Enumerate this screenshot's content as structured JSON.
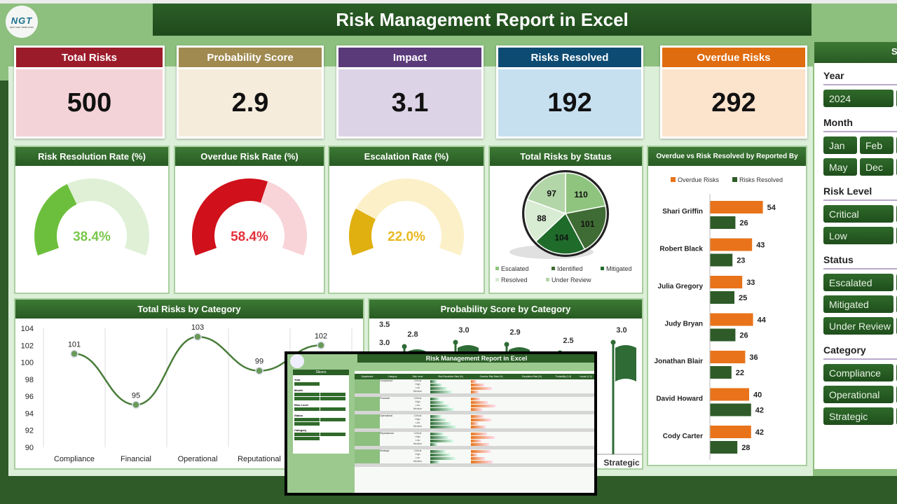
{
  "header": {
    "title": "Risk Management Report in Excel",
    "logo_text": "NGT",
    "logo_sub": "NEXT GEN TEMPLATES"
  },
  "kpis": [
    {
      "label": "Total Risks",
      "value": "500",
      "head": "#9b1b2a",
      "body": "#f4d3d8"
    },
    {
      "label": "Probability Score",
      "value": "2.9",
      "head": "#a08a50",
      "body": "#f6ecdc"
    },
    {
      "label": "Impact",
      "value": "3.1",
      "head": "#5b3a7a",
      "body": "#ddd3e6"
    },
    {
      "label": "Risks Resolved",
      "value": "192",
      "head": "#0d4b73",
      "body": "#c6e0f0"
    },
    {
      "label": "Overdue Risks",
      "value": "292",
      "head": "#e06c10",
      "body": "#fbe3cc"
    }
  ],
  "gauges": [
    {
      "title": "Risk Resolution Rate (%)",
      "value": 38.4,
      "label": "38.4%",
      "color": "#6cbf3c",
      "track": "#dff0d6",
      "text": "#7bc74d"
    },
    {
      "title": "Overdue Risk Rate (%)",
      "value": 58.4,
      "label": "58.4%",
      "color": "#d0101a",
      "track": "#f8d4d8",
      "text": "#e3303a"
    },
    {
      "title": "Escalation Rate (%)",
      "value": 22.0,
      "label": "22.0%",
      "color": "#e0b010",
      "track": "#fbf0c8",
      "text": "#e8b820"
    }
  ],
  "chart_data": [
    {
      "type": "pie",
      "title": "Total Risks by Status",
      "categories": [
        "Escalated",
        "Identified",
        "Mitigated",
        "Resolved",
        "Under Review"
      ],
      "values": [
        110,
        101,
        104,
        88,
        97
      ],
      "colors": [
        "#8fc47f",
        "#3f6b34",
        "#1f6b2a",
        "#d8ebd3",
        "#b3d6a8"
      ],
      "legend": "bottom"
    },
    {
      "type": "line",
      "title": "Total Risks by Category",
      "categories": [
        "Compliance",
        "Financial",
        "Operational",
        "Reputational",
        "Strategic"
      ],
      "values": [
        101,
        95,
        103,
        99,
        102
      ],
      "ylim": [
        90,
        104
      ],
      "yticks": [
        90,
        92,
        94,
        96,
        98,
        100,
        102,
        104
      ],
      "grid": true
    },
    {
      "type": "bar",
      "title": "Probability Score by Category",
      "categories": [
        "Compliance",
        "Financial",
        "Operational",
        "Reputational",
        "Strategic"
      ],
      "values": [
        2.8,
        3.0,
        2.9,
        2.5,
        3.0
      ],
      "yticks_visible": [
        "3.5",
        "3.0"
      ],
      "ylim": [
        0,
        3.5
      ]
    },
    {
      "type": "bar",
      "orientation": "horizontal",
      "title": "Overdue vs Risk Resolved by Reported By",
      "categories": [
        "Shari Griffin",
        "Robert Black",
        "Julia Gregory",
        "Judy Bryan",
        "Jonathan Blair",
        "David Howard",
        "Cody Carter"
      ],
      "series": [
        {
          "name": "Overdue Risks",
          "values": [
            54,
            43,
            33,
            44,
            36,
            40,
            42
          ],
          "color": "#e8731a"
        },
        {
          "name": "Risks Resolved",
          "values": [
            26,
            23,
            25,
            26,
            22,
            42,
            28
          ],
          "color": "#2e5b28"
        }
      ],
      "legend": "top"
    }
  ],
  "slicers": {
    "title": "Slicers",
    "groups": [
      {
        "title": "Year",
        "rows": [
          [
            "2024"
          ]
        ]
      },
      {
        "title": "Month",
        "rows": [
          [
            "Jan",
            "Feb"
          ],
          [
            "May",
            "Dec"
          ]
        ]
      },
      {
        "title": "Risk Level",
        "rows": [
          [
            "Critical"
          ],
          [
            "Low"
          ]
        ]
      },
      {
        "title": "Status",
        "rows": [
          [
            "Escalated"
          ],
          [
            "Mitigated"
          ],
          [
            "Under Review"
          ]
        ]
      },
      {
        "title": "Category",
        "rows": [
          [
            "Compliance"
          ],
          [
            "Operational"
          ],
          [
            "Strategic"
          ]
        ]
      }
    ]
  },
  "inset": {
    "title": "Risk Management Report in Excel",
    "slicers_title": "Slicers",
    "columns": [
      "Department",
      "Category",
      "Risk Level",
      "Risk Resolution Rate (%)",
      "Overdue Risk Rate (%)",
      "Escalation Rate (%)",
      "Probability (1-5)",
      "Impact (1-5)"
    ],
    "groups": [
      "Compliance",
      "Financial",
      "Operational",
      "Reputational",
      "Strategic"
    ],
    "levels": [
      "Critical",
      "High",
      "Low",
      "Medium"
    ]
  }
}
